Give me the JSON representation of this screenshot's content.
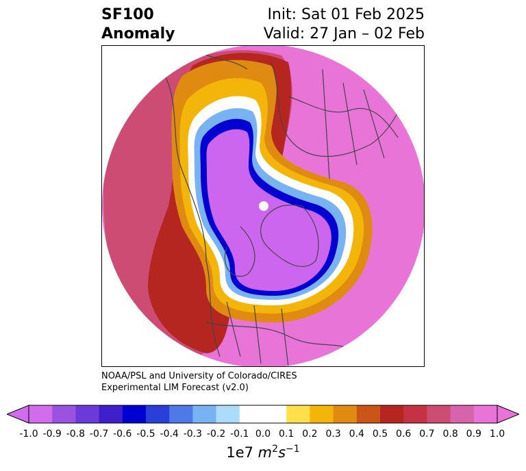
{
  "header": {
    "variable": "SF100",
    "field": "Anomaly",
    "init": "Init: Sat 01 Feb 2025",
    "valid": "Valid: 27 Jan – 02 Feb"
  },
  "credit": {
    "line1": "NOAA/PSL and University of Colorado/CIRES",
    "line2": "Experimental LIM Forecast (v2.0)"
  },
  "colorbar": {
    "tick_labels": [
      "-1.0",
      "-0.9",
      "-0.8",
      "-0.7",
      "-0.6",
      "-0.5",
      "-0.4",
      "-0.3",
      "-0.2",
      "-0.1",
      "0.0",
      "0.1",
      "0.2",
      "0.3",
      "0.4",
      "0.5",
      "0.6",
      "0.7",
      "0.8",
      "0.9",
      "1.0"
    ],
    "colors": [
      "#d16ded",
      "#9a52e0",
      "#6b3ad8",
      "#3f1ecb",
      "#0000d0",
      "#2a3fd8",
      "#4f79e6",
      "#79b2f0",
      "#addcfa",
      "#ffffff",
      "#ffffff",
      "#ffe04a",
      "#f3b50a",
      "#df8a10",
      "#c95616",
      "#b4261f",
      "#c53245",
      "#cc4c73",
      "#d863ad",
      "#e874d8"
    ],
    "extend_low": "#d16ded",
    "extend_high": "#e874d8",
    "units_prefix": "1e7 ",
    "units": "m2s-1"
  },
  "map": {
    "projection": "north-polar-stereographic",
    "field_colors": {
      "negative_core": "#cc66ee",
      "positive_outer": "#e773d9"
    },
    "coastline_color": "#444444"
  }
}
